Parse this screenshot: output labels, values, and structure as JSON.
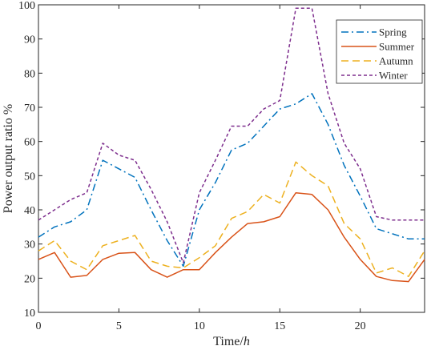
{
  "chart_data": {
    "type": "line",
    "title": "",
    "xlabel_text": "Time/",
    "xlabel_unit": "h",
    "ylabel": "Power output ratio %",
    "xlim": [
      0,
      24
    ],
    "ylim": [
      10,
      100
    ],
    "xticks": [
      0,
      5,
      10,
      15,
      20
    ],
    "yticks": [
      10,
      20,
      30,
      40,
      50,
      60,
      70,
      80,
      90,
      100
    ],
    "grid": false,
    "legend_position": "top-right",
    "x": [
      0,
      1,
      2,
      3,
      4,
      5,
      6,
      7,
      8,
      9,
      10,
      11,
      12,
      13,
      14,
      15,
      16,
      17,
      18,
      19,
      20,
      21,
      22,
      23,
      24
    ],
    "series": [
      {
        "name": "Spring",
        "color": "#0072BD",
        "dash": "dash-dot",
        "values": [
          32,
          35,
          36.5,
          40,
          54.5,
          52,
          49.5,
          40,
          31,
          23.5,
          40,
          48,
          57.5,
          59.5,
          64.5,
          69.5,
          71,
          74,
          65,
          53,
          44,
          34.5,
          33,
          31.5,
          31.5
        ]
      },
      {
        "name": "Summer",
        "color": "#D95319",
        "dash": "solid",
        "values": [
          25.5,
          27.5,
          20.3,
          20.8,
          25.5,
          27.3,
          27.5,
          22.5,
          20.3,
          22.5,
          22.5,
          27.5,
          32,
          36,
          36.5,
          38,
          45,
          44.5,
          40,
          32,
          25.5,
          20.5,
          19.3,
          19,
          25.5
        ]
      },
      {
        "name": "Autumn",
        "color": "#EDB120",
        "dash": "dashed",
        "values": [
          28,
          31,
          25,
          22.5,
          29.5,
          31,
          32.5,
          25,
          23.5,
          23,
          26,
          29.5,
          37.5,
          39.5,
          44.5,
          42,
          54,
          50,
          47,
          36,
          31.5,
          21.5,
          23,
          20.5,
          28
        ]
      },
      {
        "name": "Winter",
        "color": "#7E2F8E",
        "dash": "dotted",
        "values": [
          37,
          40,
          43,
          45,
          59.5,
          56,
          54.5,
          46,
          36.5,
          24.5,
          45,
          54.5,
          64.5,
          64.5,
          69.5,
          72,
          99,
          99,
          74,
          59.5,
          52,
          38,
          37,
          37,
          37
        ]
      }
    ]
  }
}
